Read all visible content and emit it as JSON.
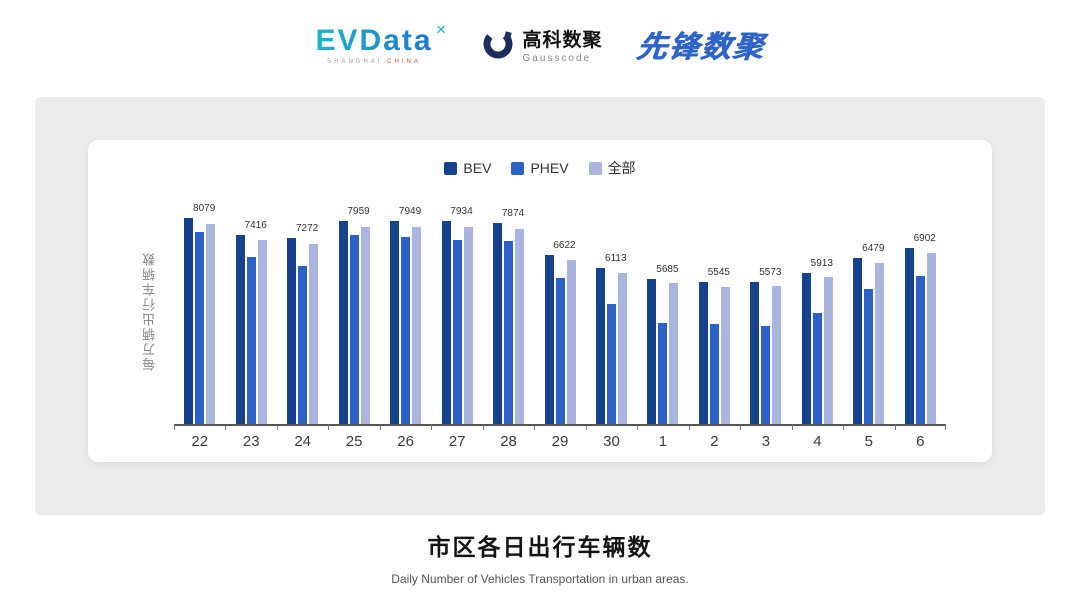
{
  "header": {
    "evdata": {
      "name": "EVData",
      "mark": "✕",
      "sub1": "SHANGHAI",
      "sub2": "CHINA"
    },
    "gausscode": {
      "cn": "高科数聚",
      "en": "Gausscode"
    },
    "pioneer": {
      "text": "先锋数聚"
    }
  },
  "chart_data": {
    "type": "bar",
    "title": "",
    "ylabel": "每万辆出行车辆数",
    "xlabel": "",
    "ylim": [
      0,
      9000
    ],
    "grid": false,
    "legend_position": "top",
    "categories": [
      "22",
      "23",
      "24",
      "25",
      "26",
      "27",
      "28",
      "29",
      "30",
      "1",
      "2",
      "3",
      "4",
      "5",
      "6"
    ],
    "series": [
      {
        "name": "BEV",
        "color": "#16418C",
        "values": [
          8079,
          7416,
          7272,
          7959,
          7949,
          7934,
          7874,
          6622,
          6113,
          5685,
          5545,
          5573,
          5913,
          6479,
          6902
        ]
      },
      {
        "name": "PHEV",
        "color": "#2E61C7",
        "values": [
          7510,
          6530,
          6180,
          7400,
          7310,
          7220,
          7165,
          5700,
          4700,
          3950,
          3900,
          3850,
          4350,
          5300,
          5800
        ]
      },
      {
        "name": "全部",
        "color": "#A9B4DF",
        "values": [
          7840,
          7190,
          7050,
          7720,
          7710,
          7700,
          7640,
          6420,
          5930,
          5510,
          5380,
          5410,
          5740,
          6290,
          6700
        ]
      }
    ],
    "group_labels": [
      "8079",
      "7416",
      "7272",
      "7959",
      "7949",
      "7934",
      "7874",
      "6622",
      "6113",
      "5685",
      "5545",
      "5573",
      "5913",
      "6479",
      "6902"
    ]
  },
  "footer": {
    "title": "市区各日出行车辆数",
    "subtitle": "Daily Number of Vehicles Transportation in urban areas."
  }
}
